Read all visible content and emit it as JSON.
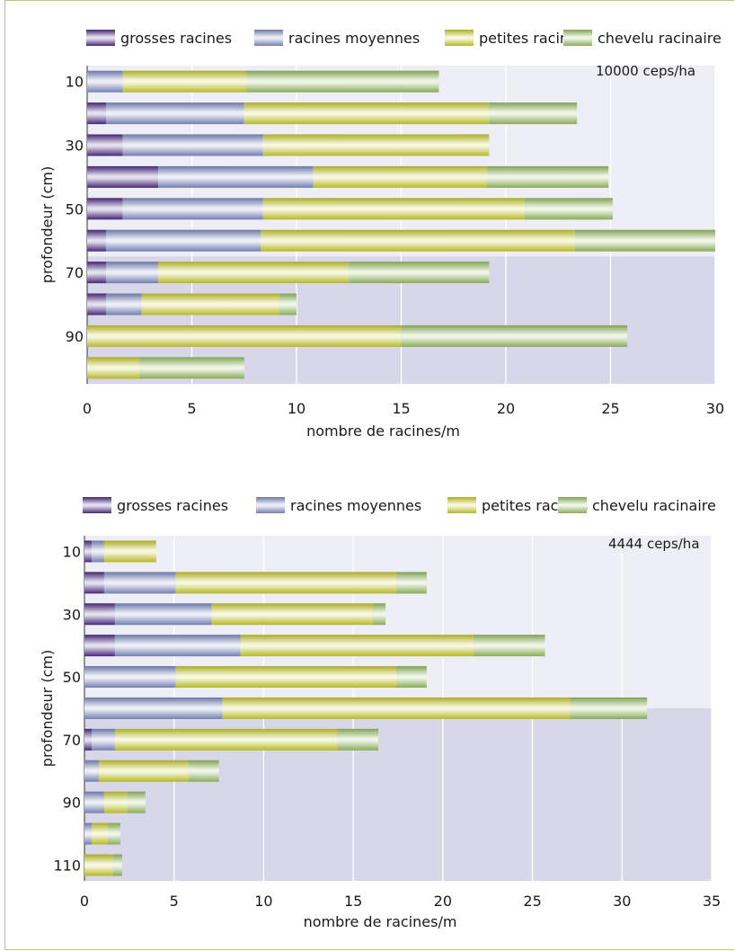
{
  "colors": {
    "grosses": "#4b2c86",
    "moyennes": "#7f8cc4",
    "petites": "#c9cc2a",
    "chevelu": "#97be62",
    "plot_bg_light": "#eeeef6",
    "plot_bg_dark": "#d8d7ea"
  },
  "legend": [
    {
      "key": "grosses",
      "label": "grosses racines"
    },
    {
      "key": "moyennes",
      "label": "racines moyennes"
    },
    {
      "key": "petites",
      "label": "petites racines"
    },
    {
      "key": "chevelu",
      "label": "chevelu racinaire"
    }
  ],
  "chart_data": [
    {
      "type": "bar",
      "orientation": "horizontal",
      "stacked": true,
      "annotation": "10000 ceps/ha",
      "xlabel": "nombre de racines/m",
      "ylabel": "profondeur (cm)",
      "xlim": [
        0,
        30
      ],
      "xticks": [
        "0",
        "5",
        "10",
        "15",
        "20",
        "25",
        "30"
      ],
      "yticks": [
        "10",
        "",
        "30",
        "",
        "50",
        "",
        "70",
        "",
        "90",
        ""
      ],
      "grid": true,
      "series": [
        {
          "name": "grosses racines",
          "key": "grosses",
          "values": [
            0,
            0.9,
            1.7,
            3.4,
            1.7,
            0.9,
            0.9,
            0.9,
            0,
            0
          ]
        },
        {
          "name": "racines moyennes",
          "key": "moyennes",
          "values": [
            1.7,
            6.6,
            6.7,
            7.4,
            6.7,
            7.4,
            2.5,
            1.7,
            0,
            0
          ]
        },
        {
          "name": "petites racines",
          "key": "petites",
          "values": [
            5.9,
            11.7,
            10.8,
            8.3,
            12.5,
            15.0,
            9.1,
            6.6,
            15.0,
            2.5
          ]
        },
        {
          "name": "chevelu racinaire",
          "key": "chevelu",
          "values": [
            9.2,
            4.2,
            0,
            5.8,
            4.2,
            6.7,
            6.7,
            0.8,
            10.8,
            5.0
          ]
        }
      ]
    },
    {
      "type": "bar",
      "orientation": "horizontal",
      "stacked": true,
      "annotation": "4444 ceps/ha",
      "xlabel": "nombre de racines/m",
      "ylabel": "profondeur (cm)",
      "xlim": [
        0,
        35
      ],
      "xticks": [
        "0",
        "5",
        "10",
        "15",
        "20",
        "25",
        "30",
        "35"
      ],
      "yticks": [
        "10",
        "",
        "30",
        "",
        "50",
        "",
        "70",
        "",
        "90",
        "",
        "110"
      ],
      "grid": true,
      "series": [
        {
          "name": "grosses racines",
          "key": "grosses",
          "values": [
            0.4,
            1.1,
            1.7,
            1.7,
            0,
            0,
            0.4,
            0,
            0,
            0,
            0
          ]
        },
        {
          "name": "racines moyennes",
          "key": "moyennes",
          "values": [
            0.7,
            4.0,
            5.4,
            7.0,
            5.1,
            7.7,
            1.3,
            0.8,
            1.1,
            0.4,
            0
          ]
        },
        {
          "name": "petites racines",
          "key": "petites",
          "values": [
            2.9,
            12.3,
            9.0,
            13.0,
            12.3,
            19.4,
            12.4,
            5.0,
            1.3,
            0.9,
            1.6
          ]
        },
        {
          "name": "chevelu racinaire",
          "key": "chevelu",
          "values": [
            0,
            1.7,
            0.7,
            4.0,
            1.7,
            4.3,
            2.3,
            1.7,
            1.0,
            0.7,
            0.5
          ]
        }
      ]
    }
  ]
}
